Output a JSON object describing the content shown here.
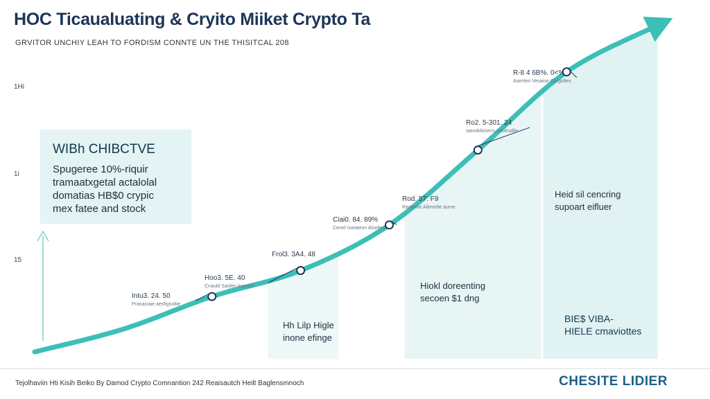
{
  "title": "HOC Ticaualuating & Cryito Miiket Crypto Ta",
  "subtitle": "GRVITOR UNCHIY LEAH TO FORDISM CONNTE UN THE THISITCAL 208",
  "callout": {
    "title": "WIBh CHIBCTVE",
    "lines": [
      "Spugeree 10%-riquir",
      "tramaatxgetal actalolal",
      "domatias HB$0 crypic",
      "mex fatee and stock"
    ]
  },
  "regions": [
    {
      "lines": [
        "Hh Lilp Higle",
        "inone efinge"
      ]
    },
    {
      "lines": [
        "Hiokl doreenting",
        "secoen $1 dng"
      ]
    },
    {
      "lines": [
        "Heid sil cencring",
        "supoart eifluer"
      ]
    },
    {
      "lines": [
        "BIE$ VIBA-",
        "HIELE cmaviottes"
      ]
    }
  ],
  "footer": {
    "text": "Tejolhaviin Hti Kisih Beiko By Damod Crypto Comnantion 242 Reaisautch Heilt Baglensmnoch",
    "brand": "CHESITE LIDIER"
  },
  "colors": {
    "line": "#3cbfb6",
    "arrow": "#3cbfb6",
    "area": "#eaf6f6",
    "title": "#1d3557",
    "marker_fill": "#ffffff",
    "marker_stroke": "#1d3557"
  },
  "icons": {
    "brand_logo": "circle-swoosh-logo",
    "axis_arrow": "up-arrow-icon"
  },
  "chart_data": {
    "type": "line",
    "title": "HOC Ticaualuating & Cryito Miiket Crypto Ta",
    "subtitle": "GRVITOR UNCHIY LEAH TO FORDISM CONNTE UN THE THISITCAL 208",
    "y_ticks": [
      "1Hi",
      "1i",
      "15"
    ],
    "x": [
      0,
      1,
      2,
      3,
      4,
      5,
      6,
      7
    ],
    "y": [
      0,
      0.07,
      0.17,
      0.25,
      0.39,
      0.62,
      0.86,
      1.0
    ],
    "markers": [
      {
        "x": 2,
        "lines": [
          "Intu3. 24. 50",
          "Pranaciaie aesfigsoltie"
        ]
      },
      {
        "x": 3,
        "lines": [
          "Hoo3. 5E. 40",
          "Cnauld Sarjlen Iiaseles"
        ]
      },
      {
        "x": 3,
        "lines": [
          "Frol3. 3A4. 48"
        ]
      },
      {
        "x": 4,
        "lines": [
          "Ciai0. 84. 89%",
          "Cenel noeatesn Aloelenos"
        ]
      },
      {
        "x": 4,
        "lines": [
          "Rod. 57. F9",
          "Ranjerbe Ailmerlte aurve"
        ]
      },
      {
        "x": 5,
        "lines": [
          "Ro2. 5-301. 24",
          "Iaevdebinerrs Aeolrsdfie"
        ]
      },
      {
        "x": 6,
        "lines": [
          "R-8 4 6B%. 0<%E",
          "Asenlen Vesaise Cargoltes"
        ]
      }
    ],
    "grid": false,
    "legend": "none",
    "trend": "rising"
  }
}
